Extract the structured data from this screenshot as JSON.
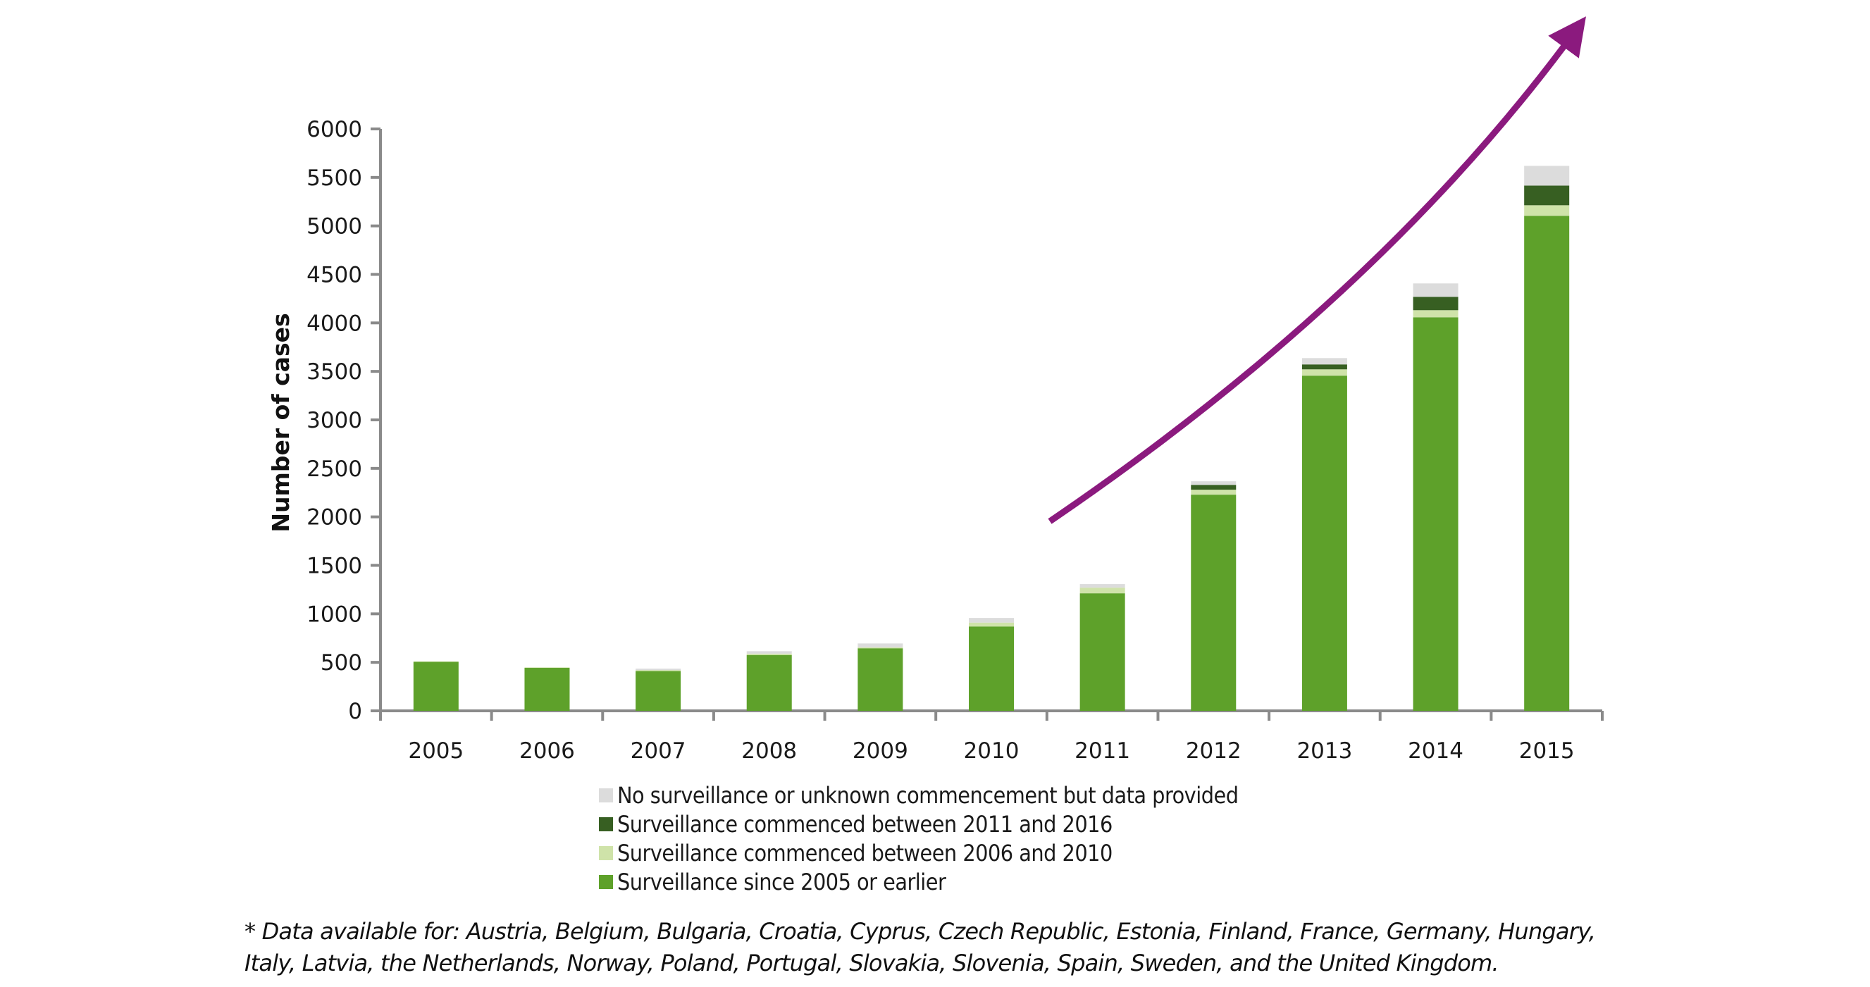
{
  "chart_data": {
    "type": "bar",
    "stacked": true,
    "title": "",
    "xlabel": "",
    "ylabel": "Number of cases",
    "ylim": [
      0,
      6000
    ],
    "yticks": [
      0,
      500,
      1000,
      1500,
      2000,
      2500,
      3000,
      3500,
      4000,
      4500,
      5000,
      5500,
      6000
    ],
    "grid": false,
    "legend_position": "bottom",
    "categories": [
      "2005",
      "2006",
      "2007",
      "2008",
      "2009",
      "2010",
      "2011",
      "2012",
      "2013",
      "2014",
      "2015"
    ],
    "series": [
      {
        "name": "Surveillance since 2005 or earlier",
        "color": "#5ea12a",
        "values": [
          505,
          443,
          410,
          575,
          645,
          870,
          1212,
          2229,
          3456,
          4058,
          5104
        ]
      },
      {
        "name": "Surveillance commenced between 2006 and 2010",
        "color": "#cfe3a9",
        "values": [
          5,
          5,
          10,
          15,
          10,
          40,
          58,
          51,
          65,
          73,
          109
        ]
      },
      {
        "name": "Surveillance commenced between 2011 and 2016",
        "color": "#375f22",
        "values": [
          0,
          0,
          0,
          0,
          0,
          0,
          0,
          50,
          51,
          138,
          203
        ]
      },
      {
        "name": "No surveillance or unknown commencement but data provided",
        "color": "#dcdcdc",
        "values": [
          0,
          0,
          15,
          25,
          40,
          48,
          37,
          37,
          65,
          138,
          203
        ]
      }
    ],
    "legend_order": [
      3,
      2,
      1,
      0
    ],
    "annotations": [
      {
        "type": "trend-arrow",
        "description": "upward exponential trend arrow from 2011 to beyond 2015",
        "color": "#8b1a7e"
      }
    ]
  },
  "footnote": {
    "line1": "* Data available for: Austria, Belgium, Bulgaria, Croatia, Cyprus, Czech Republic, Estonia, Finland, France, Germany, Hungary,",
    "line2": "Italy, Latvia, the Netherlands, Norway, Poland, Portugal, Slovakia, Slovenia, Spain, Sweden, and the United Kingdom."
  }
}
